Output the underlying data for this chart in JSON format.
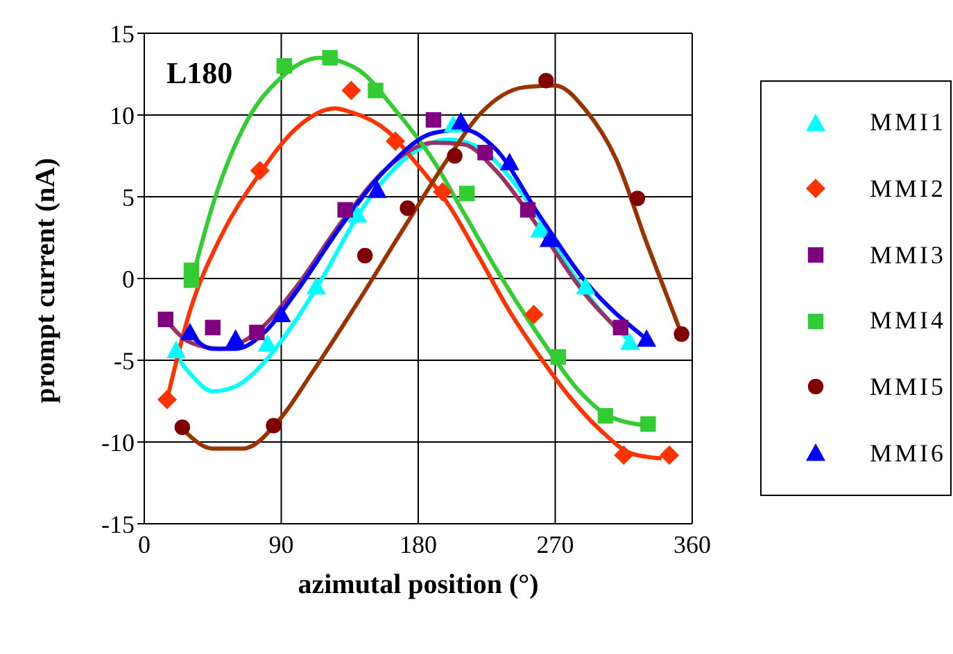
{
  "chart_data": {
    "type": "scatter",
    "xlabel": "azimutal position (°)",
    "ylabel": "prompt current (nA)",
    "annotations": [
      "L180"
    ],
    "xlim": [
      0,
      360
    ],
    "xticks": [
      0,
      90,
      180,
      270,
      360
    ],
    "ylim": [
      -15,
      15
    ],
    "yticks": [
      -15,
      -10,
      -5,
      0,
      5,
      10,
      15
    ],
    "grid": true,
    "legend": "right",
    "series": [
      {
        "name": "MMI1",
        "color": "#00ffff",
        "marker": "triangle",
        "x": [
          21,
          81,
          113,
          140,
          203,
          260,
          290,
          319
        ],
        "values": [
          -4.4,
          -4.0,
          -0.5,
          3.9,
          9.4,
          3.0,
          -0.5,
          -3.9
        ]
      },
      {
        "name": "MMI2",
        "color": "#ff3300",
        "marker": "diamond",
        "x": [
          15,
          76,
          136,
          165,
          196,
          256,
          315,
          345
        ],
        "values": [
          -7.4,
          6.6,
          11.5,
          8.4,
          5.3,
          -2.2,
          -10.8,
          -10.8
        ]
      },
      {
        "name": "MMI3",
        "color": "#800080",
        "marker": "square",
        "x": [
          14,
          45,
          74,
          132,
          190,
          224,
          252,
          313
        ],
        "values": [
          -2.5,
          -3.0,
          -3.3,
          4.2,
          9.7,
          7.7,
          4.2,
          -3.0
        ]
      },
      {
        "name": "MMI4",
        "color": "#33cc33",
        "marker": "square",
        "x": [
          31,
          31,
          92,
          122,
          152,
          212,
          272,
          303,
          331
        ],
        "values": [
          0.5,
          -0.1,
          13.0,
          13.5,
          11.5,
          5.2,
          -4.8,
          -8.4,
          -8.9
        ]
      },
      {
        "name": "MMI5",
        "color": "#800000",
        "marker": "circle",
        "x": [
          25,
          85,
          145,
          173,
          204,
          264,
          324,
          353
        ],
        "values": [
          -9.1,
          -9.0,
          1.4,
          4.3,
          7.5,
          12.1,
          4.9,
          -3.4
        ]
      },
      {
        "name": "MMI6",
        "color": "#0000ff",
        "marker": "triangle",
        "x": [
          30,
          60,
          90,
          153,
          208,
          240,
          266,
          330
        ],
        "values": [
          -3.3,
          -3.7,
          -2.2,
          5.4,
          9.6,
          7.1,
          2.4,
          -3.7
        ]
      },
      {
        "type": "line",
        "color": "#00ffff",
        "x": [
          20,
          30,
          45,
          60,
          80,
          100,
          120,
          140,
          160,
          180,
          200,
          220,
          240,
          260,
          280,
          300,
          320
        ],
        "values": [
          -4.6,
          -5.8,
          -6.9,
          -6.6,
          -5,
          -2.5,
          0.5,
          3.8,
          6.3,
          7.9,
          8.5,
          8.0,
          6.2,
          3.6,
          0.5,
          -2.0,
          -3.9
        ]
      },
      {
        "type": "line",
        "color": "#ff3300",
        "x": [
          15,
          30,
          50,
          75,
          100,
          125,
          135,
          160,
          180,
          200,
          220,
          240,
          260,
          280,
          300,
          320,
          340
        ],
        "values": [
          -7.4,
          -2,
          2.5,
          6.3,
          9.2,
          10.4,
          10.2,
          9.0,
          6.9,
          4.5,
          1.3,
          -2,
          -4.8,
          -7.3,
          -9.3,
          -10.7,
          -11.0
        ]
      },
      {
        "type": "line",
        "color": "#993366",
        "x": [
          14,
          30,
          50,
          75,
          100,
          130,
          160,
          190,
          210,
          230,
          260,
          290,
          313
        ],
        "values": [
          -2.5,
          -3.9,
          -4.3,
          -3.2,
          -0.5,
          3.5,
          6.8,
          8.3,
          8.2,
          6.7,
          3.0,
          -1,
          -3.3
        ]
      },
      {
        "type": "line",
        "color": "#33cc33",
        "x": [
          31,
          45,
          65,
          90,
          115,
          140,
          165,
          190,
          210,
          235,
          260,
          285,
          305,
          331
        ],
        "values": [
          -0.2,
          4.5,
          9.2,
          12.3,
          13.5,
          12.8,
          10.3,
          7.2,
          4,
          0,
          -3.6,
          -6.8,
          -8.4,
          -9.0
        ]
      },
      {
        "type": "line",
        "color": "#993300",
        "x": [
          25,
          45,
          65,
          90,
          110,
          140,
          170,
          200,
          220,
          250,
          270,
          290,
          310,
          330,
          353
        ],
        "values": [
          -9.2,
          -10.4,
          -10.4,
          -8.5,
          -5.8,
          -1.5,
          3,
          7.4,
          10,
          11.7,
          11.8,
          10.3,
          7.3,
          2.2,
          -3.4
        ]
      },
      {
        "type": "line",
        "color": "#0000ff",
        "x": [
          30,
          45,
          60,
          80,
          100,
          130,
          160,
          190,
          210,
          230,
          260,
          290,
          330
        ],
        "values": [
          -3.4,
          -4.3,
          -4.3,
          -3.2,
          -0.8,
          3.3,
          6.8,
          8.9,
          9.1,
          8.0,
          3.8,
          -0.2,
          -3.7
        ]
      }
    ]
  }
}
